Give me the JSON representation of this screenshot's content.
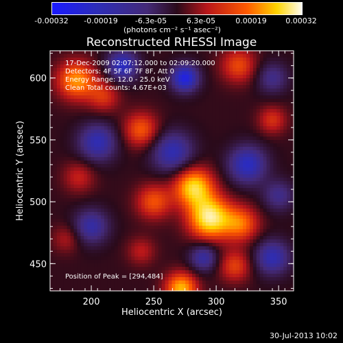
{
  "chart_data": {
    "type": "heatmap",
    "title": "Reconstructed RHESSI Image",
    "xlabel": "Heliocentric X (arcsec)",
    "ylabel": "Heliocentric Y (arcsec)",
    "xlim": [
      167,
      362
    ],
    "ylim": [
      428,
      622
    ],
    "x_ticks": [
      200,
      250,
      300,
      350
    ],
    "y_ticks": [
      450,
      500,
      550,
      600
    ],
    "colorbar": {
      "ticks": [
        "-0.00032",
        "-0.00019",
        "-6.3e-05",
        "6.3e-05",
        "0.00019",
        "0.00032"
      ],
      "range": [
        -0.00032,
        0.00032
      ],
      "units": "(photons cm⁻² s⁻¹ asec⁻²)",
      "colors": [
        "#1a1aff",
        "#2d2db8",
        "#442a78",
        "#2a0a1a",
        "#b8161a",
        "#ff5a00",
        "#ffd400",
        "#fffcf0"
      ]
    },
    "annotations": [
      "17-Dec-2009 02:07:12.000 to 02:09:20.000",
      "Detectors: 4F 5F 6F 7F 8F, Att 0",
      "Energy Range: 12.0 - 25.0 keV",
      "Clean     Total counts: 4.67E+03",
      "Position of Peak = [294,484]"
    ],
    "peak": {
      "x": 294,
      "y": 484,
      "value": 0.00032
    },
    "blobs": [
      {
        "x": 295,
        "y": 487,
        "value": 0.00032,
        "sigma": 12
      },
      {
        "x": 282,
        "y": 512,
        "value": 0.00028,
        "sigma": 11
      },
      {
        "x": 320,
        "y": 482,
        "value": 0.00018,
        "sigma": 10
      },
      {
        "x": 250,
        "y": 500,
        "value": 0.00016,
        "sigma": 10
      },
      {
        "x": 188,
        "y": 598,
        "value": 0.00022,
        "sigma": 11
      },
      {
        "x": 210,
        "y": 585,
        "value": 0.00012,
        "sigma": 9
      },
      {
        "x": 240,
        "y": 558,
        "value": 0.00017,
        "sigma": 10
      },
      {
        "x": 272,
        "y": 430,
        "value": 0.00025,
        "sigma": 9
      },
      {
        "x": 315,
        "y": 448,
        "value": 0.00014,
        "sigma": 9
      },
      {
        "x": 318,
        "y": 610,
        "value": 0.00015,
        "sigma": 10
      },
      {
        "x": 345,
        "y": 566,
        "value": 0.00012,
        "sigma": 8
      },
      {
        "x": 190,
        "y": 520,
        "value": 0.0001,
        "sigma": 9
      },
      {
        "x": 180,
        "y": 470,
        "value": 8e-05,
        "sigma": 8
      },
      {
        "x": 240,
        "y": 460,
        "value": 9e-05,
        "sigma": 8
      },
      {
        "x": 205,
        "y": 548,
        "value": -0.00018,
        "sigma": 11
      },
      {
        "x": 225,
        "y": 610,
        "value": -0.0002,
        "sigma": 9
      },
      {
        "x": 275,
        "y": 600,
        "value": -0.00024,
        "sigma": 8
      },
      {
        "x": 265,
        "y": 540,
        "value": -0.00018,
        "sigma": 12
      },
      {
        "x": 325,
        "y": 530,
        "value": -0.0002,
        "sigma": 11
      },
      {
        "x": 200,
        "y": 480,
        "value": -0.00016,
        "sigma": 10
      },
      {
        "x": 290,
        "y": 455,
        "value": -0.00016,
        "sigma": 8
      },
      {
        "x": 345,
        "y": 455,
        "value": -0.00018,
        "sigma": 10
      },
      {
        "x": 350,
        "y": 505,
        "value": -0.00012,
        "sigma": 9
      },
      {
        "x": 345,
        "y": 600,
        "value": -0.00012,
        "sigma": 9
      }
    ]
  },
  "timestamp": "30-Jul-2013 10:02"
}
